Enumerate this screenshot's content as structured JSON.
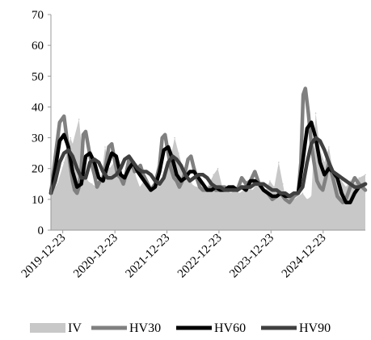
{
  "chart_data": {
    "type": "line",
    "title": "",
    "xlabel": "",
    "ylabel": "",
    "ylim": [
      0,
      70
    ],
    "y_ticks": [
      0,
      10,
      20,
      30,
      40,
      50,
      60,
      70
    ],
    "x_range": [
      "2019-10-01",
      "2025-10-15"
    ],
    "x_tick_labels": [
      "2019-12-23",
      "2020-12-23",
      "2021-12-23",
      "2022-12-23",
      "2023-12-23",
      "2024-12-23"
    ],
    "grid": false,
    "legend_position": "bottom",
    "colors": {
      "IV": "#c8c8c8",
      "HV30": "#808080",
      "HV60": "#000000",
      "HV90": "#404040",
      "axis": "#999999"
    },
    "series": [
      {
        "name": "IV",
        "style": "filled area with spikes",
        "x": [
          "2019-10-01",
          "2019-11-15",
          "2020-01-01",
          "2020-02-15",
          "2020-03-01",
          "2020-04-15",
          "2020-05-15",
          "2020-06-15",
          "2020-07-15",
          "2020-08-15",
          "2020-09-15",
          "2020-10-15",
          "2020-11-15",
          "2020-12-15",
          "2021-01-15",
          "2021-02-15",
          "2021-03-15",
          "2021-04-15",
          "2021-05-15",
          "2021-06-15",
          "2021-07-15",
          "2021-08-15",
          "2021-09-15",
          "2021-10-15",
          "2021-11-15",
          "2021-12-15",
          "2022-01-15",
          "2022-02-15",
          "2022-03-15",
          "2022-04-15",
          "2022-05-15",
          "2022-06-15",
          "2022-07-15",
          "2022-08-15",
          "2022-09-15",
          "2022-10-15",
          "2022-11-15",
          "2022-12-15",
          "2023-01-15",
          "2023-02-15",
          "2023-03-15",
          "2023-04-15",
          "2023-05-15",
          "2023-06-15",
          "2023-07-15",
          "2023-08-15",
          "2023-09-15",
          "2023-10-15",
          "2023-11-15",
          "2023-12-15",
          "2024-01-15",
          "2024-02-15",
          "2024-03-15",
          "2024-04-01",
          "2024-04-15",
          "2024-05-01",
          "2024-06-01",
          "2024-07-01",
          "2024-08-01",
          "2024-09-01",
          "2024-10-01",
          "2024-11-01",
          "2024-12-01",
          "2025-01-01",
          "2025-02-01",
          "2025-03-01",
          "2025-04-01",
          "2025-05-01",
          "2025-06-01",
          "2025-07-01",
          "2025-08-01",
          "2025-09-01",
          "2025-10-15"
        ],
        "values": [
          12,
          15,
          22,
          30,
          28,
          36,
          22,
          16,
          15,
          14,
          16,
          27,
          20,
          22,
          17,
          16,
          19,
          22,
          18,
          14,
          16,
          13,
          14,
          17,
          15,
          21,
          23,
          30,
          25,
          20,
          18,
          15,
          14,
          14,
          13,
          15,
          18,
          20,
          14,
          13,
          12,
          13,
          12,
          13,
          14,
          13,
          15,
          14,
          13,
          16,
          14,
          22,
          15,
          11,
          10,
          11,
          10,
          11,
          12,
          10,
          11,
          38,
          26,
          22,
          27,
          19,
          17,
          16,
          14,
          16,
          15,
          17,
          18
        ]
      },
      {
        "name": "HV30",
        "x": [
          "2019-10-01",
          "2019-11-01",
          "2019-12-01",
          "2020-01-01",
          "2020-01-20",
          "2020-02-10",
          "2020-03-01",
          "2020-03-15",
          "2020-04-01",
          "2020-04-15",
          "2020-05-01",
          "2020-05-15",
          "2020-06-01",
          "2020-06-20",
          "2020-07-10",
          "2020-08-01",
          "2020-08-20",
          "2020-09-10",
          "2020-10-01",
          "2020-10-20",
          "2020-11-10",
          "2020-12-01",
          "2020-12-20",
          "2021-01-10",
          "2021-02-01",
          "2021-02-20",
          "2021-03-10",
          "2021-04-01",
          "2021-04-20",
          "2021-05-10",
          "2021-06-01",
          "2021-06-20",
          "2021-07-10",
          "2021-08-01",
          "2021-09-01",
          "2021-10-01",
          "2021-11-01",
          "2021-11-20",
          "2021-12-10",
          "2022-01-01",
          "2022-01-20",
          "2022-02-10",
          "2022-03-01",
          "2022-03-20",
          "2022-04-10",
          "2022-05-01",
          "2022-05-20",
          "2022-06-10",
          "2022-07-01",
          "2022-07-20",
          "2022-08-10",
          "2022-09-01",
          "2022-10-01",
          "2022-11-01",
          "2022-12-01",
          "2022-12-20",
          "2023-01-10",
          "2023-02-01",
          "2023-03-01",
          "2023-04-01",
          "2023-05-01",
          "2023-06-01",
          "2023-07-01",
          "2023-08-01",
          "2023-09-01",
          "2023-10-01",
          "2023-11-01",
          "2023-12-01",
          "2024-01-01",
          "2024-02-01",
          "2024-03-01",
          "2024-04-01",
          "2024-05-01",
          "2024-06-01",
          "2024-07-01",
          "2024-07-20",
          "2024-08-05",
          "2024-08-20",
          "2024-09-10",
          "2024-10-01",
          "2024-10-20",
          "2024-11-10",
          "2024-12-01",
          "2024-12-20",
          "2025-01-10",
          "2025-02-01",
          "2025-03-01",
          "2025-04-01",
          "2025-04-20",
          "2025-05-10",
          "2025-06-01",
          "2025-07-01",
          "2025-08-01",
          "2025-09-01",
          "2025-10-15"
        ],
        "values": [
          12,
          24,
          35,
          37,
          30,
          22,
          16,
          13,
          12,
          14,
          20,
          31,
          32,
          27,
          22,
          18,
          14,
          16,
          17,
          21,
          27,
          28,
          23,
          18,
          17,
          15,
          18,
          23,
          22,
          19,
          20,
          21,
          18,
          16,
          13,
          15,
          21,
          30,
          31,
          25,
          20,
          17,
          16,
          14,
          16,
          19,
          23,
          24,
          20,
          17,
          14,
          13,
          13,
          14,
          13,
          13,
          14,
          14,
          13,
          14,
          13,
          17,
          15,
          16,
          19,
          15,
          13,
          12,
          10,
          11,
          12,
          10,
          9,
          11,
          12,
          22,
          44,
          46,
          38,
          28,
          22,
          16,
          14,
          13,
          17,
          22,
          17,
          11,
          10,
          9,
          10,
          14,
          17,
          15,
          13
        ]
      },
      {
        "name": "HV60",
        "x": [
          "2019-10-01",
          "2019-11-01",
          "2019-12-01",
          "2020-01-01",
          "2020-02-01",
          "2020-03-01",
          "2020-04-01",
          "2020-05-01",
          "2020-06-01",
          "2020-07-01",
          "2020-08-01",
          "2020-09-01",
          "2020-10-01",
          "2020-11-01",
          "2020-12-01",
          "2021-01-01",
          "2021-02-01",
          "2021-03-01",
          "2021-04-01",
          "2021-05-01",
          "2021-06-01",
          "2021-07-01",
          "2021-08-01",
          "2021-09-01",
          "2021-10-01",
          "2021-11-01",
          "2021-12-01",
          "2022-01-01",
          "2022-02-01",
          "2022-03-01",
          "2022-04-01",
          "2022-05-01",
          "2022-06-01",
          "2022-07-01",
          "2022-08-01",
          "2022-09-01",
          "2022-10-01",
          "2022-11-01",
          "2022-12-01",
          "2023-01-01",
          "2023-02-01",
          "2023-03-01",
          "2023-04-01",
          "2023-05-01",
          "2023-06-01",
          "2023-07-01",
          "2023-08-01",
          "2023-09-01",
          "2023-10-01",
          "2023-11-01",
          "2023-12-01",
          "2024-01-01",
          "2024-02-01",
          "2024-03-01",
          "2024-04-01",
          "2024-05-01",
          "2024-06-01",
          "2024-07-01",
          "2024-08-01",
          "2024-09-01",
          "2024-10-01",
          "2024-11-01",
          "2024-12-01",
          "2025-01-01",
          "2025-02-01",
          "2025-03-01",
          "2025-04-01",
          "2025-05-01",
          "2025-06-01",
          "2025-07-01",
          "2025-08-01",
          "2025-09-01",
          "2025-10-15"
        ],
        "values": [
          12,
          20,
          29,
          31,
          27,
          19,
          14,
          15,
          24,
          25,
          22,
          17,
          16,
          21,
          25,
          24,
          18,
          17,
          20,
          22,
          19,
          17,
          15,
          13,
          14,
          19,
          26,
          27,
          23,
          18,
          16,
          17,
          19,
          19,
          17,
          15,
          13,
          13,
          14,
          13,
          13,
          14,
          14,
          13,
          14,
          13,
          16,
          16,
          15,
          13,
          12,
          11,
          11,
          12,
          11,
          11,
          12,
          12,
          22,
          33,
          35,
          30,
          22,
          18,
          20,
          19,
          17,
          12,
          9,
          9,
          12,
          14,
          15
        ]
      },
      {
        "name": "HV90",
        "x": [
          "2019-10-01",
          "2019-11-01",
          "2019-12-01",
          "2020-01-01",
          "2020-02-01",
          "2020-03-01",
          "2020-04-01",
          "2020-05-01",
          "2020-06-01",
          "2020-07-01",
          "2020-08-01",
          "2020-09-01",
          "2020-10-01",
          "2020-11-01",
          "2020-12-01",
          "2021-01-01",
          "2021-02-01",
          "2021-03-01",
          "2021-04-01",
          "2021-05-01",
          "2021-06-01",
          "2021-07-01",
          "2021-08-01",
          "2021-09-01",
          "2021-10-01",
          "2021-11-01",
          "2021-12-01",
          "2022-01-01",
          "2022-02-01",
          "2022-03-01",
          "2022-04-01",
          "2022-05-01",
          "2022-06-01",
          "2022-07-01",
          "2022-08-01",
          "2022-09-01",
          "2022-10-01",
          "2022-11-01",
          "2022-12-01",
          "2023-01-01",
          "2023-02-01",
          "2023-03-01",
          "2023-04-01",
          "2023-05-01",
          "2023-06-01",
          "2023-07-01",
          "2023-08-01",
          "2023-09-01",
          "2023-10-01",
          "2023-11-01",
          "2023-12-01",
          "2024-01-01",
          "2024-02-01",
          "2024-03-01",
          "2024-04-01",
          "2024-05-01",
          "2024-06-01",
          "2024-07-01",
          "2024-08-01",
          "2024-09-01",
          "2024-10-01",
          "2024-11-01",
          "2024-12-01",
          "2025-01-01",
          "2025-02-01",
          "2025-03-01",
          "2025-04-01",
          "2025-05-01",
          "2025-06-01",
          "2025-07-01",
          "2025-08-01",
          "2025-09-01",
          "2025-10-15"
        ],
        "values": [
          12,
          16,
          22,
          25,
          26,
          24,
          20,
          17,
          17,
          22,
          23,
          22,
          19,
          17,
          17,
          18,
          20,
          23,
          24,
          22,
          20,
          19,
          19,
          18,
          16,
          15,
          17,
          22,
          24,
          23,
          21,
          18,
          16,
          17,
          18,
          18,
          17,
          15,
          14,
          14,
          13,
          13,
          13,
          13,
          14,
          14,
          14,
          15,
          15,
          15,
          14,
          13,
          13,
          12,
          12,
          11,
          12,
          12,
          14,
          22,
          28,
          30,
          29,
          26,
          22,
          19,
          18,
          17,
          16,
          15,
          14,
          14,
          15
        ]
      }
    ]
  }
}
